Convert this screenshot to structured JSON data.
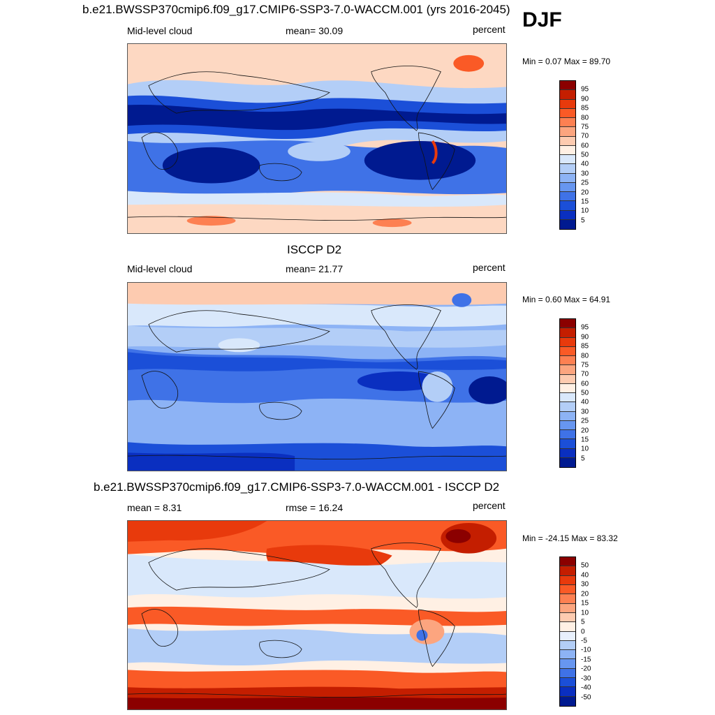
{
  "header": {
    "season": "DJF"
  },
  "panels": [
    {
      "title": "b.e21.BWSSP370cmip6.f09_g17.CMIP6-SSP3-7.0-WACCM.001 (yrs 2016-2045)",
      "left_label": "Mid-level cloud",
      "center_label": "mean=  30.09",
      "right_label": "percent",
      "minmax": "Min =   0.07 Max =  89.70",
      "colorbar": {
        "labels": [
          "95",
          "90",
          "85",
          "80",
          "75",
          "70",
          "60",
          "50",
          "40",
          "30",
          "25",
          "20",
          "15",
          "10",
          "5"
        ],
        "colors": [
          "#8b0000",
          "#c41e00",
          "#e83a0c",
          "#fa5a26",
          "#fd8052",
          "#fca57f",
          "#fdcbb0",
          "#fff0e4",
          "#d9e8fb",
          "#b3cef7",
          "#8db3f5",
          "#6796f0",
          "#3f72e7",
          "#1b4fd8",
          "#0a2fc0",
          "#001a90"
        ]
      }
    },
    {
      "title": "ISCCP D2",
      "left_label": "Mid-level cloud",
      "center_label": "mean=  21.77",
      "right_label": "percent",
      "minmax": "Min =   0.60 Max =  64.91",
      "colorbar": {
        "labels": [
          "95",
          "90",
          "85",
          "80",
          "75",
          "70",
          "60",
          "50",
          "40",
          "30",
          "25",
          "20",
          "15",
          "10",
          "5"
        ],
        "colors": [
          "#8b0000",
          "#c41e00",
          "#e83a0c",
          "#fa5a26",
          "#fd8052",
          "#fca57f",
          "#fdcbb0",
          "#fff0e4",
          "#d9e8fb",
          "#b3cef7",
          "#8db3f5",
          "#6796f0",
          "#3f72e7",
          "#1b4fd8",
          "#0a2fc0",
          "#001a90"
        ]
      }
    },
    {
      "title": "b.e21.BWSSP370cmip6.f09_g17.CMIP6-SSP3-7.0-WACCM.001 - ISCCP D2",
      "left_label": "mean =   8.31",
      "center_label": "rmse =  16.24",
      "right_label": "percent",
      "minmax": "Min = -24.15 Max =  83.32",
      "colorbar": {
        "labels": [
          "50",
          "40",
          "30",
          "20",
          "15",
          "10",
          "5",
          "0",
          "-5",
          "-10",
          "-15",
          "-20",
          "-30",
          "-40",
          "-50"
        ],
        "colors": [
          "#8b0000",
          "#c41e00",
          "#e83a0c",
          "#fa5a26",
          "#fd8052",
          "#fca57f",
          "#fdcbb0",
          "#fff0e4",
          "#e8f0fc",
          "#b3cef7",
          "#8db3f5",
          "#6796f0",
          "#3f72e7",
          "#1b4fd8",
          "#0a2fc0",
          "#001a90"
        ]
      }
    }
  ]
}
